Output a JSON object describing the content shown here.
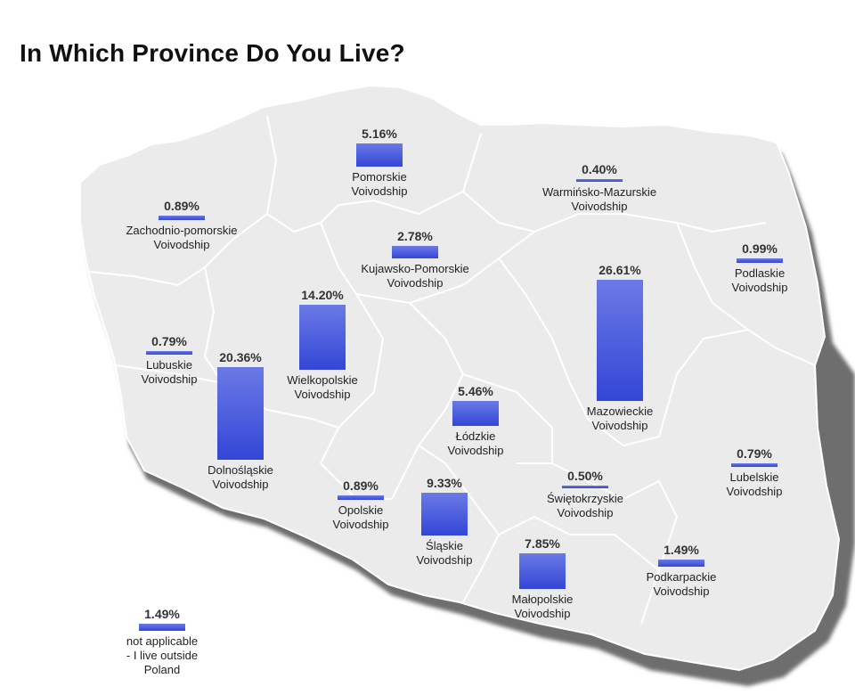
{
  "title": "In Which Province Do You Live?",
  "chart_data": {
    "type": "bar",
    "title": "In Which Province Do You Live?",
    "unit": "%",
    "categories": [
      "Pomorskie Voivodship",
      "Warmińsko-Mazurskie Voivodship",
      "Zachodnio-pomorskie Voivodship",
      "Kujawsko-Pomorskie Voivodship",
      "Podlaskie Voivodship",
      "Wielkopolskie Voivodship",
      "Mazowieckie Voivodship",
      "Lubuskie Voivodship",
      "Dolnośląskie Voivodship",
      "Łódzkie Voivodship",
      "Lubelskie Voivodship",
      "Świętokrzyskie Voivodship",
      "Opolskie Voivodship",
      "Śląskie Voivodship",
      "Małopolskie Voivodship",
      "Podkarpackie Voivodship",
      "not applicable - I live outside Poland"
    ],
    "values": [
      5.16,
      0.4,
      0.89,
      2.78,
      0.99,
      14.2,
      26.61,
      0.79,
      20.36,
      5.46,
      0.79,
      0.5,
      0.89,
      9.33,
      7.85,
      1.49,
      1.49
    ],
    "labels": [
      "5.16%",
      "0.40%",
      "0.89%",
      "2.78%",
      "0.99%",
      "14.20%",
      "26.61%",
      "0.79%",
      "20.36%",
      "5.46%",
      "0.79%",
      "0.50%",
      "0.89%",
      "9.33%",
      "7.85%",
      "1.49%",
      "1.49%"
    ],
    "name_lines": [
      [
        "Pomorskie",
        "Voivodship"
      ],
      [
        "Warmińsko-Mazurskie",
        "Voivodship"
      ],
      [
        "Zachodnio-pomorskie",
        "Voivodship"
      ],
      [
        "Kujawsko-Pomorskie",
        "Voivodship"
      ],
      [
        "Podlaskie",
        "Voivodship"
      ],
      [
        "Wielkopolskie",
        "Voivodship"
      ],
      [
        "Mazowieckie",
        "Voivodship"
      ],
      [
        "Lubuskie",
        "Voivodship"
      ],
      [
        "Dolnośląskie",
        "Voivodship"
      ],
      [
        "Łódzkie",
        "Voivodship"
      ],
      [
        "Lubelskie",
        "Voivodship"
      ],
      [
        "Świętokrzyskie",
        "Voivodship"
      ],
      [
        "Opolskie",
        "Voivodship"
      ],
      [
        "Śląskie",
        "Voivodship"
      ],
      [
        "Małopolskie",
        "Voivodship"
      ],
      [
        "Podkarpackie",
        "Voivodship"
      ],
      [
        "not applicable",
        "- I live outside",
        "Poland"
      ]
    ],
    "bar_color": "#3a4fd8",
    "map_color": "#ebebeb",
    "shadow_color": "#6e6e6e"
  }
}
